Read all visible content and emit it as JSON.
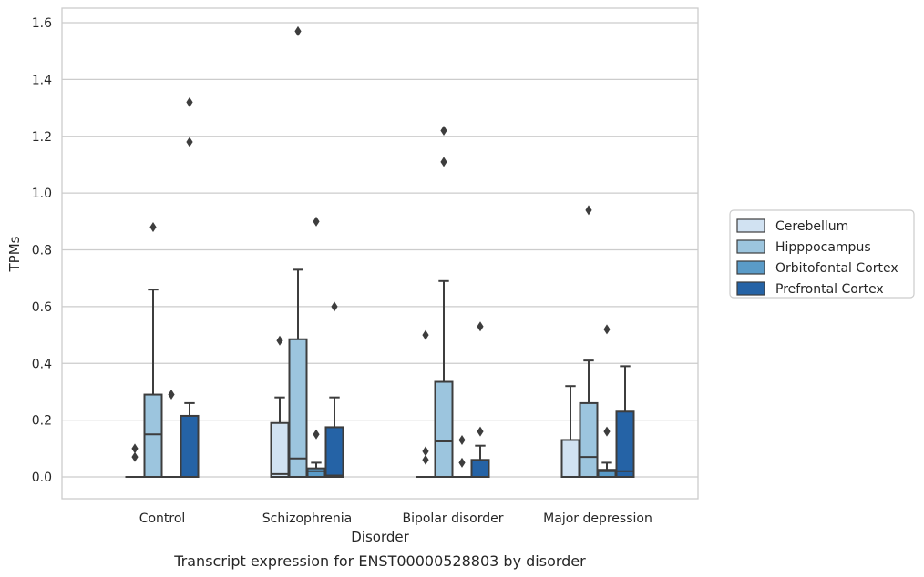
{
  "chart_data": {
    "type": "boxplot",
    "title": "",
    "caption": "Transcript expression for ENST00000528803 by disorder",
    "xlabel": "Disorder",
    "ylabel": "TPMs",
    "ylim": [
      -0.075,
      1.65
    ],
    "yticks": [
      0.0,
      0.2,
      0.4,
      0.6,
      0.8,
      1.0,
      1.2,
      1.4,
      1.6
    ],
    "ytick_labels": [
      "0.0",
      "0.2",
      "0.4",
      "0.6",
      "0.8",
      "1.0",
      "1.2",
      "1.4",
      "1.6"
    ],
    "grid": "horizontal",
    "legend_position": "right",
    "categories": [
      "Control",
      "Schizophrenia",
      "Bipolar disorder",
      "Major depression"
    ],
    "series": [
      {
        "name": "Cerebellum",
        "color": "#d1e2f2",
        "boxes": [
          {
            "whislo": 0.0,
            "q1": 0.0,
            "med": 0.0,
            "q3": 0.0,
            "whishi": 0.0,
            "fliers": [
              0.07,
              0.1
            ]
          },
          {
            "whislo": 0.0,
            "q1": 0.0,
            "med": 0.01,
            "q3": 0.19,
            "whishi": 0.28,
            "fliers": [
              0.48
            ]
          },
          {
            "whislo": 0.0,
            "q1": 0.0,
            "med": 0.0,
            "q3": 0.0,
            "whishi": 0.0,
            "fliers": [
              0.06,
              0.09,
              0.5
            ]
          },
          {
            "whislo": 0.0,
            "q1": 0.0,
            "med": 0.0,
            "q3": 0.13,
            "whishi": 0.32,
            "fliers": []
          }
        ]
      },
      {
        "name": "Hipppocampus",
        "color": "#9cc5de",
        "boxes": [
          {
            "whislo": 0.0,
            "q1": 0.0,
            "med": 0.15,
            "q3": 0.29,
            "whishi": 0.66,
            "fliers": [
              0.88
            ]
          },
          {
            "whislo": 0.0,
            "q1": 0.0,
            "med": 0.065,
            "q3": 0.485,
            "whishi": 0.73,
            "fliers": [
              1.57
            ]
          },
          {
            "whislo": 0.0,
            "q1": 0.0,
            "med": 0.125,
            "q3": 0.335,
            "whishi": 0.69,
            "fliers": [
              1.11,
              1.22
            ]
          },
          {
            "whislo": 0.0,
            "q1": 0.0,
            "med": 0.07,
            "q3": 0.26,
            "whishi": 0.41,
            "fliers": [
              0.94
            ]
          }
        ]
      },
      {
        "name": "Orbitofontal Cortex",
        "color": "#5a9bc8",
        "boxes": [
          {
            "whislo": 0.0,
            "q1": 0.0,
            "med": 0.0,
            "q3": 0.0,
            "whishi": 0.0,
            "fliers": [
              0.29
            ]
          },
          {
            "whislo": 0.0,
            "q1": 0.0,
            "med": 0.02,
            "q3": 0.03,
            "whishi": 0.05,
            "fliers": [
              0.15,
              0.9
            ]
          },
          {
            "whislo": 0.0,
            "q1": 0.0,
            "med": 0.0,
            "q3": 0.0,
            "whishi": 0.0,
            "fliers": [
              0.05,
              0.13
            ]
          },
          {
            "whislo": 0.0,
            "q1": 0.0,
            "med": 0.02,
            "q3": 0.025,
            "whishi": 0.05,
            "fliers": [
              0.16,
              0.52
            ]
          }
        ]
      },
      {
        "name": "Prefrontal Cortex",
        "color": "#2563a6",
        "boxes": [
          {
            "whislo": 0.0,
            "q1": 0.0,
            "med": 0.0,
            "q3": 0.215,
            "whishi": 0.26,
            "fliers": [
              1.18,
              1.32
            ]
          },
          {
            "whislo": 0.0,
            "q1": 0.0,
            "med": 0.005,
            "q3": 0.175,
            "whishi": 0.28,
            "fliers": [
              0.6
            ]
          },
          {
            "whislo": 0.0,
            "q1": 0.0,
            "med": 0.0,
            "q3": 0.06,
            "whishi": 0.11,
            "fliers": [
              0.16,
              0.53
            ]
          },
          {
            "whislo": 0.0,
            "q1": 0.0,
            "med": 0.02,
            "q3": 0.23,
            "whishi": 0.39,
            "fliers": []
          }
        ]
      }
    ]
  }
}
